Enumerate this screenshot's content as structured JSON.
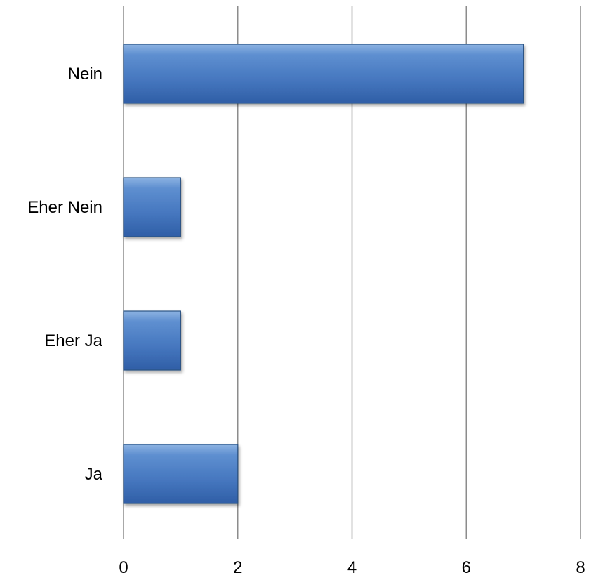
{
  "chart_data": {
    "type": "bar",
    "orientation": "horizontal",
    "categories": [
      "Nein",
      "Eher Nein",
      "Eher Ja",
      "Ja"
    ],
    "values": [
      7,
      1,
      1,
      2
    ],
    "xlim": [
      0,
      8
    ],
    "x_ticks": [
      0,
      2,
      4,
      6,
      8
    ],
    "title": "",
    "xlabel": "",
    "ylabel": "",
    "grid": "vertical",
    "legend": "none",
    "colors": {
      "bar_fill": "#4f81bd",
      "bar_highlight": "#8db3e2",
      "bar_border": "#2c5283",
      "gridline": "#8c8c8c"
    }
  }
}
